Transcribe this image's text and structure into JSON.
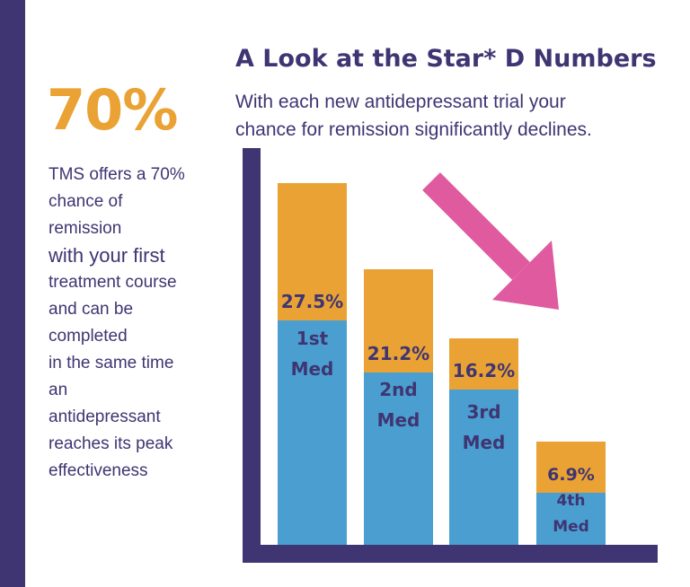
{
  "headline_stat": "70%",
  "side_text_lines": [
    "TMS offers a 70%",
    "chance of",
    "remission",
    "with your first",
    "treatment course",
    "and can be",
    "completed",
    "in the same time",
    "an",
    "antidepressant",
    "reaches its peak",
    "effectiveness"
  ],
  "colors": {
    "dark_purple": "#3f3572",
    "orange": "#e9a233",
    "blue": "#4a9fd0",
    "pink_arrow": "#e05aa0"
  },
  "chart_data": {
    "type": "bar",
    "title": "A Look at the Star* D Numbers",
    "subtitle_lines": [
      "With each new antidepressant trial your",
      "chance for remission significantly declines."
    ],
    "categories": [
      "1st Med",
      "2nd Med",
      "3rd Med",
      "4th Med"
    ],
    "category_label_lines": [
      [
        "1st",
        "Med"
      ],
      [
        "2nd",
        "Med"
      ],
      [
        "3rd",
        "Med"
      ],
      [
        "4th",
        "Med"
      ]
    ],
    "values": [
      27.5,
      21.2,
      16.2,
      6.9
    ],
    "value_labels": [
      "27.5%",
      "21.2%",
      "16.2%",
      "6.9%"
    ],
    "ylim": [
      0,
      40
    ],
    "stacked_segments": "orange top segment shows remission rate label; blue base shows med label",
    "annotation": "pink downward arrow indicating decline",
    "grid": false,
    "legend": "none"
  }
}
